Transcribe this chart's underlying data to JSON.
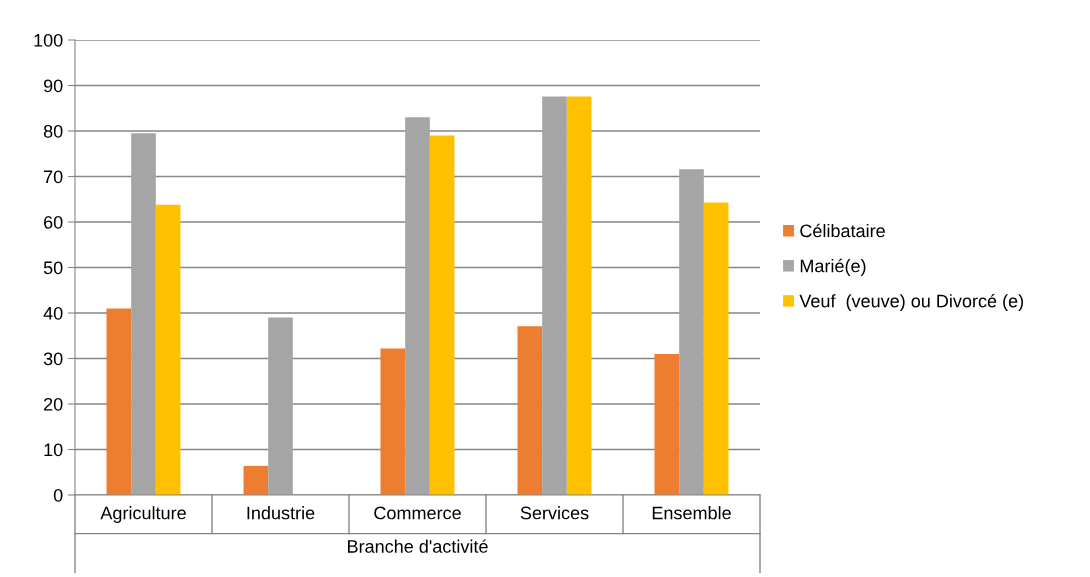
{
  "chart_data": {
    "type": "bar",
    "xlabel": "Branche d'activité",
    "categories": [
      "Agriculture",
      "Industrie",
      "Commerce",
      "Services",
      "Ensemble"
    ],
    "series": [
      {
        "name": "Célibataire",
        "color": "#ed7d31",
        "values": [
          41.0,
          6.4,
          32.2,
          37.1,
          31.0
        ]
      },
      {
        "name": "Marié(e)",
        "color": "#a5a5a5",
        "values": [
          79.5,
          39.0,
          83.0,
          87.6,
          71.6
        ]
      },
      {
        "name": "Veuf  (veuve) ou Divorcé (e)",
        "color": "#ffc000",
        "values": [
          63.8,
          null,
          79.0,
          87.6,
          64.3
        ]
      }
    ],
    "ylim": [
      0,
      100
    ],
    "yticks": [
      0,
      10,
      20,
      30,
      40,
      50,
      60,
      70,
      80,
      90,
      100
    ],
    "grid": "y",
    "legend": "right"
  }
}
